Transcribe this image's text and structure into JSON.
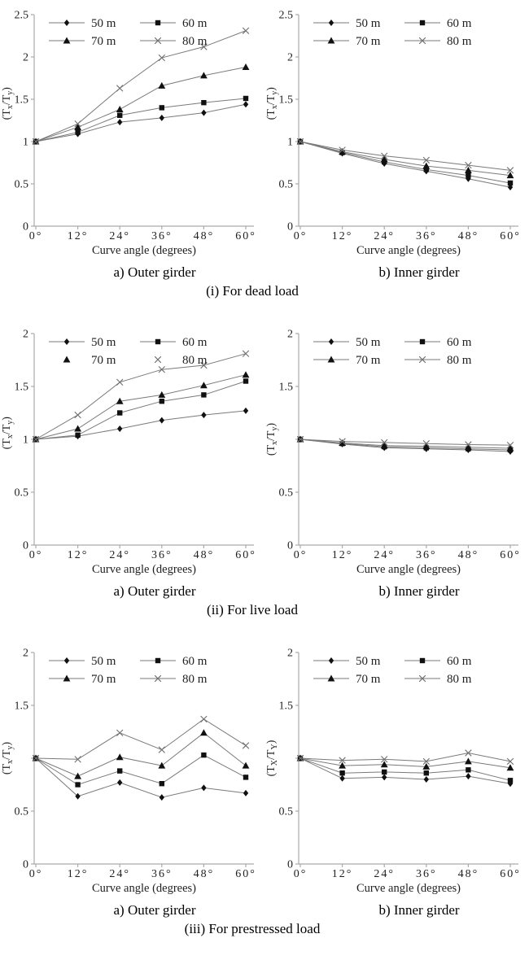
{
  "figure": {
    "xlabel": "Curve angle (degrees)",
    "x_degrees": [
      0,
      12,
      24,
      36,
      48,
      60
    ],
    "x_tick_labels": [
      "0°",
      "12°",
      "24°",
      "36°",
      "48°",
      "60°"
    ],
    "series_names": [
      "50 m",
      "60 m",
      "70 m",
      "80 m"
    ],
    "marker_shapes": [
      "diamond",
      "square",
      "triangle",
      "x"
    ],
    "colors": {
      "background": "#ffffff",
      "line": "#7a7a7a",
      "marker": "#111111",
      "x_marker": "#6f6f6f",
      "axis": "#aaaaaa",
      "text": "#1f1f1f"
    }
  },
  "rows": [
    {
      "label": "(i) For dead load"
    },
    {
      "label": "(ii) For live load"
    },
    {
      "label": "(iii) For prestressed load"
    }
  ],
  "chart_data": [
    {
      "id": "dead-load-outer-girder",
      "type": "line",
      "title": "a) Outer girder",
      "group": "(i) For dead load",
      "xlabel": "Curve angle (degrees)",
      "ylabel_parts": [
        "(T",
        "x",
        "/T",
        "y",
        ")"
      ],
      "x_degrees": [
        0,
        12,
        24,
        36,
        48,
        60
      ],
      "ylim": [
        0,
        2.5
      ],
      "yticks": [
        {
          "v": 0,
          "label": "0"
        },
        {
          "v": 0.5,
          "label": "0.5"
        },
        {
          "v": 1,
          "label": "1"
        },
        {
          "v": 1.5,
          "label": "1.5"
        },
        {
          "v": 2,
          "label": "2"
        },
        {
          "v": 2.5,
          "label": "2.5"
        }
      ],
      "series": [
        {
          "name": "50 m",
          "marker": "diamond",
          "legend_line": true,
          "values": [
            1.0,
            1.09,
            1.23,
            1.28,
            1.34,
            1.44
          ]
        },
        {
          "name": "60 m",
          "marker": "square",
          "legend_line": true,
          "values": [
            1.0,
            1.11,
            1.31,
            1.4,
            1.46,
            1.51
          ]
        },
        {
          "name": "70 m",
          "marker": "triangle",
          "legend_line": true,
          "values": [
            1.0,
            1.17,
            1.38,
            1.66,
            1.78,
            1.88
          ]
        },
        {
          "name": "80 m",
          "marker": "x",
          "legend_line": true,
          "values": [
            1.0,
            1.21,
            1.63,
            1.99,
            2.12,
            2.31
          ]
        }
      ]
    },
    {
      "id": "dead-load-inner-girder",
      "type": "line",
      "title": "b) Inner girder",
      "group": "(i) For dead load",
      "xlabel": "Curve angle (degrees)",
      "ylabel_parts": [
        "(T",
        "x",
        "/T",
        "y",
        ")"
      ],
      "x_degrees": [
        0,
        12,
        24,
        36,
        48,
        60
      ],
      "ylim": [
        0,
        2.5
      ],
      "yticks": [
        {
          "v": 0,
          "label": "0"
        },
        {
          "v": 0.5,
          "label": "0.5"
        },
        {
          "v": 1,
          "label": "1"
        },
        {
          "v": 1.5,
          "label": "1.5"
        },
        {
          "v": 2,
          "label": "2"
        },
        {
          "v": 2.5,
          "label": "2.5"
        }
      ],
      "series": [
        {
          "name": "50 m",
          "marker": "diamond",
          "legend_line": true,
          "values": [
            1.0,
            0.86,
            0.74,
            0.65,
            0.56,
            0.46
          ]
        },
        {
          "name": "60 m",
          "marker": "square",
          "legend_line": true,
          "values": [
            1.0,
            0.87,
            0.76,
            0.67,
            0.6,
            0.51
          ]
        },
        {
          "name": "70 m",
          "marker": "triangle",
          "legend_line": true,
          "values": [
            1.0,
            0.88,
            0.79,
            0.71,
            0.66,
            0.6
          ]
        },
        {
          "name": "80 m",
          "marker": "x",
          "legend_line": true,
          "values": [
            1.0,
            0.9,
            0.83,
            0.78,
            0.72,
            0.66
          ]
        }
      ]
    },
    {
      "id": "live-load-outer-girder",
      "type": "line",
      "title": "a) Outer girder",
      "group": "(ii) For live load",
      "xlabel": "Curve angle (degrees)",
      "ylabel_parts": [
        "(T",
        "x",
        "/T",
        "y",
        ")"
      ],
      "x_degrees": [
        0,
        12,
        24,
        36,
        48,
        60
      ],
      "ylim": [
        0,
        2
      ],
      "yticks": [
        {
          "v": 0,
          "label": "0"
        },
        {
          "v": 0.5,
          "label": "0.5"
        },
        {
          "v": 1,
          "label": "1"
        },
        {
          "v": 1.5,
          "label": "1.5"
        },
        {
          "v": 2,
          "label": "2"
        }
      ],
      "series": [
        {
          "name": "50 m",
          "marker": "diamond",
          "legend_line": true,
          "values": [
            1.0,
            1.03,
            1.1,
            1.18,
            1.23,
            1.27
          ]
        },
        {
          "name": "60 m",
          "marker": "square",
          "legend_line": true,
          "values": [
            1.0,
            1.04,
            1.25,
            1.36,
            1.42,
            1.55
          ]
        },
        {
          "name": "70 m",
          "marker": "triangle",
          "legend_line": false,
          "values": [
            1.0,
            1.1,
            1.36,
            1.42,
            1.51,
            1.61
          ]
        },
        {
          "name": "80 m",
          "marker": "x",
          "legend_line": false,
          "values": [
            1.0,
            1.23,
            1.54,
            1.66,
            1.7,
            1.81
          ]
        }
      ]
    },
    {
      "id": "live-load-inner-girder",
      "type": "line",
      "title": "b) Inner girder",
      "group": "(ii) For live load",
      "xlabel": "Curve angle (degrees)",
      "ylabel_parts": [
        "(T",
        "x",
        "/T",
        "y",
        ")"
      ],
      "x_degrees": [
        0,
        12,
        24,
        36,
        48,
        60
      ],
      "ylim": [
        0,
        2
      ],
      "yticks": [
        {
          "v": 0,
          "label": "0"
        },
        {
          "v": 0.5,
          "label": "0.5"
        },
        {
          "v": 1,
          "label": ""
        },
        {
          "v": 1.5,
          "label": "1.5"
        },
        {
          "v": 2,
          "label": "2"
        }
      ],
      "series": [
        {
          "name": "50 m",
          "marker": "diamond",
          "legend_line": true,
          "values": [
            1.0,
            0.955,
            0.92,
            0.91,
            0.9,
            0.885
          ]
        },
        {
          "name": "60 m",
          "marker": "square",
          "legend_line": true,
          "values": [
            1.0,
            0.96,
            0.93,
            0.92,
            0.91,
            0.9
          ]
        },
        {
          "name": "70 m",
          "marker": "triangle",
          "legend_line": true,
          "values": [
            1.0,
            0.965,
            0.94,
            0.935,
            0.925,
            0.915
          ]
        },
        {
          "name": "80 m",
          "marker": "x",
          "legend_line": true,
          "values": [
            1.0,
            0.98,
            0.97,
            0.96,
            0.95,
            0.945
          ]
        }
      ]
    },
    {
      "id": "prestressed-load-outer-girder",
      "type": "line",
      "title": "a) Outer girder",
      "group": "(iii) For prestressed load",
      "xlabel": "Curve angle (degrees)",
      "ylabel_parts": [
        "(T",
        "x",
        "/T",
        "y",
        ")"
      ],
      "x_degrees": [
        0,
        12,
        24,
        36,
        48,
        60
      ],
      "ylim": [
        0,
        2
      ],
      "yticks": [
        {
          "v": 0,
          "label": "0"
        },
        {
          "v": 0.5,
          "label": "0.5"
        },
        {
          "v": 1,
          "label": ""
        },
        {
          "v": 1.5,
          "label": "1.5"
        },
        {
          "v": 2,
          "label": "2"
        }
      ],
      "series": [
        {
          "name": "50 m",
          "marker": "diamond",
          "legend_line": true,
          "values": [
            1.0,
            0.64,
            0.77,
            0.63,
            0.72,
            0.67
          ]
        },
        {
          "name": "60 m",
          "marker": "square",
          "legend_line": true,
          "values": [
            1.0,
            0.75,
            0.88,
            0.76,
            1.03,
            0.82
          ]
        },
        {
          "name": "70 m",
          "marker": "triangle",
          "legend_line": true,
          "values": [
            1.0,
            0.83,
            1.01,
            0.93,
            1.24,
            0.93
          ]
        },
        {
          "name": "80 m",
          "marker": "x",
          "legend_line": true,
          "values": [
            1.0,
            0.99,
            1.24,
            1.08,
            1.37,
            1.12
          ]
        }
      ]
    },
    {
      "id": "prestressed-load-inner-girder",
      "type": "line",
      "title": "b) Inner girder",
      "group": "(iii) For prestressed load",
      "xlabel": "Curve angle (degrees)",
      "ylabel_parts": [
        "(T",
        "X",
        "/T",
        "Y",
        ")"
      ],
      "x_degrees": [
        0,
        12,
        24,
        36,
        48,
        60
      ],
      "ylim": [
        0,
        2
      ],
      "yticks": [
        {
          "v": 0,
          "label": "0"
        },
        {
          "v": 0.5,
          "label": "0.5"
        },
        {
          "v": 1,
          "label": ""
        },
        {
          "v": 1.5,
          "label": "1.5"
        },
        {
          "v": 2,
          "label": "2"
        }
      ],
      "series": [
        {
          "name": "50 m",
          "marker": "diamond",
          "legend_line": true,
          "values": [
            1.0,
            0.81,
            0.82,
            0.8,
            0.83,
            0.76
          ]
        },
        {
          "name": "60 m",
          "marker": "square",
          "legend_line": true,
          "values": [
            1.0,
            0.86,
            0.87,
            0.86,
            0.89,
            0.79
          ]
        },
        {
          "name": "70 m",
          "marker": "triangle",
          "legend_line": true,
          "values": [
            1.0,
            0.93,
            0.94,
            0.92,
            0.97,
            0.91
          ]
        },
        {
          "name": "80 m",
          "marker": "x",
          "legend_line": true,
          "values": [
            1.0,
            0.98,
            0.99,
            0.97,
            1.05,
            0.97
          ]
        }
      ]
    }
  ]
}
